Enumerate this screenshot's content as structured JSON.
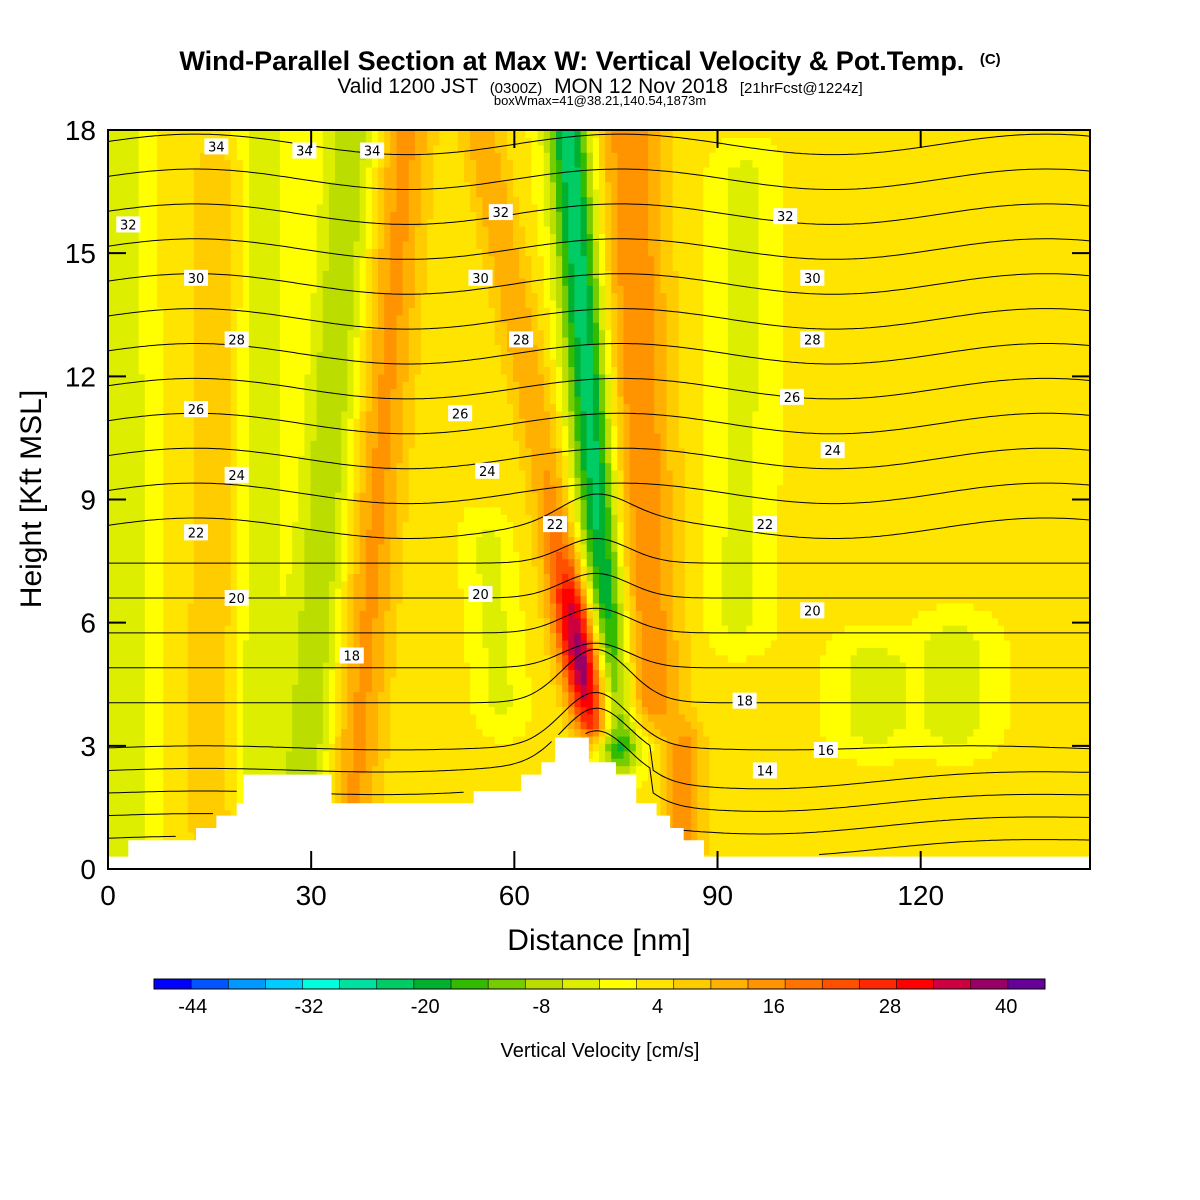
{
  "header": {
    "title": "Wind-Parallel Section at Max W: Vertical Velocity & Pot.Temp.",
    "title_mark": "(C)",
    "sub_valid": "Valid 1200 JST",
    "sub_z": "(0300Z)",
    "sub_date": "MON 12 Nov 2018",
    "sub_fcst": "[21hrFcst@1224z]",
    "sub_box": "boxWmax=41@38.21,140.54,1873m"
  },
  "chart_data": {
    "type": "heatmap",
    "title": "Wind-Parallel Section at Max W: Vertical Velocity & Pot.Temp.",
    "xlabel": "Distance [nm]",
    "ylabel": "Height [Kft MSL]",
    "xlim": [
      0,
      145
    ],
    "ylim": [
      0,
      18
    ],
    "x_ticks": [
      0,
      30,
      60,
      90,
      120
    ],
    "y_ticks": [
      0,
      3,
      6,
      9,
      12,
      15,
      18
    ],
    "colorbar": {
      "label": "Vertical Velocity [cm/s]",
      "tick_labels": [
        "-44",
        "-32",
        "-20",
        "-8",
        "4",
        "16",
        "28",
        "40"
      ],
      "tick_values": [
        -44,
        -32,
        -20,
        -8,
        4,
        16,
        28,
        40
      ],
      "bounds": [
        -48,
        44
      ],
      "colors": [
        "#0000ff",
        "#0055ff",
        "#0099ff",
        "#00ccff",
        "#00ffdd",
        "#00e0a0",
        "#00cc66",
        "#00b030",
        "#33bb00",
        "#77cc00",
        "#bbdd00",
        "#ddee00",
        "#ffff00",
        "#ffe400",
        "#ffcc00",
        "#ffb000",
        "#ff9400",
        "#ff7400",
        "#ff5000",
        "#ff2800",
        "#ff0000",
        "#cc0040",
        "#990066",
        "#660099"
      ]
    },
    "velocity_features": [
      {
        "kind": "updraft",
        "x0": 72,
        "x1": 55,
        "y0": 3.5,
        "y1": 18,
        "w": 3.2,
        "peak": 41
      },
      {
        "kind": "downdraft",
        "x0": 75,
        "x1": 68,
        "y0": 3,
        "y1": 18,
        "w": 3.2,
        "peak": -27
      },
      {
        "kind": "updraft",
        "x0": 80,
        "x1": 77,
        "y0": 4,
        "y1": 18,
        "w": 5,
        "peak": 14
      },
      {
        "kind": "downdraft",
        "x0": 58,
        "x1": 56,
        "y0": 4,
        "y1": 8,
        "w": 3,
        "peak": -6
      },
      {
        "kind": "downdraft",
        "x0": 29,
        "x1": 36,
        "y0": 1.5,
        "y1": 18,
        "w": 4,
        "peak": -12
      },
      {
        "kind": "updraft",
        "x0": 36,
        "x1": 44,
        "y0": 1.5,
        "y1": 18,
        "w": 4,
        "peak": 12
      },
      {
        "kind": "downdraft",
        "x0": 22,
        "x1": 23,
        "y0": 2,
        "y1": 18,
        "w": 3.5,
        "peak": -7
      },
      {
        "kind": "updraft",
        "x0": 15,
        "x1": 16,
        "y0": 1,
        "y1": 17,
        "w": 3.5,
        "peak": 7
      },
      {
        "kind": "downdraft",
        "x0": 3,
        "x1": 2,
        "y0": 0,
        "y1": 18,
        "w": 3.5,
        "peak": -8
      },
      {
        "kind": "downdraft",
        "x0": 93,
        "x1": 94,
        "y0": 6,
        "y1": 17,
        "w": 4,
        "peak": -6
      },
      {
        "kind": "updraft",
        "x0": 85,
        "x1": 85,
        "y0": 0.5,
        "y1": 3,
        "w": 3,
        "peak": 13
      },
      {
        "kind": "downdraft",
        "x0": 113,
        "x1": 113,
        "y0": 3.5,
        "y1": 5,
        "w": 5,
        "peak": -8
      },
      {
        "kind": "downdraft",
        "x0": 125,
        "x1": 125,
        "y0": 3.5,
        "y1": 5.5,
        "w": 5,
        "peak": -8
      }
    ],
    "terrain": {
      "x": [
        0,
        3,
        10,
        13,
        16,
        19,
        20,
        30,
        33,
        49,
        54,
        58,
        61,
        62,
        64,
        66,
        70,
        71,
        73,
        75,
        78,
        81,
        83,
        85,
        88,
        145
      ],
      "y": [
        0.3,
        0.7,
        0.7,
        1.0,
        1.3,
        1.6,
        2.3,
        2.3,
        1.6,
        1.6,
        1.9,
        1.9,
        2.3,
        2.3,
        2.6,
        3.2,
        3.2,
        2.6,
        2.6,
        2.3,
        1.6,
        1.3,
        1.0,
        0.7,
        0.3,
        0.3
      ]
    },
    "theta_contours": {
      "levels": [
        13,
        14,
        15,
        16,
        17,
        18,
        19,
        20,
        21,
        22,
        23,
        24,
        25,
        26,
        27,
        28,
        29,
        30,
        31,
        32,
        33,
        34,
        35
      ],
      "labels": [
        {
          "text": "34",
          "x": 16,
          "y": 17.6
        },
        {
          "text": "34",
          "x": 29,
          "y": 17.5
        },
        {
          "text": "34",
          "x": 39,
          "y": 17.5
        },
        {
          "text": "32",
          "x": 3,
          "y": 15.7
        },
        {
          "text": "32",
          "x": 58,
          "y": 16.0
        },
        {
          "text": "32",
          "x": 100,
          "y": 15.9
        },
        {
          "text": "30",
          "x": 13,
          "y": 14.4
        },
        {
          "text": "30",
          "x": 55,
          "y": 14.4
        },
        {
          "text": "30",
          "x": 104,
          "y": 14.4
        },
        {
          "text": "28",
          "x": 19,
          "y": 12.9
        },
        {
          "text": "28",
          "x": 61,
          "y": 12.9
        },
        {
          "text": "28",
          "x": 104,
          "y": 12.9
        },
        {
          "text": "26",
          "x": 13,
          "y": 11.2
        },
        {
          "text": "26",
          "x": 52,
          "y": 11.1
        },
        {
          "text": "26",
          "x": 101,
          "y": 11.5
        },
        {
          "text": "24",
          "x": 19,
          "y": 9.6
        },
        {
          "text": "24",
          "x": 56,
          "y": 9.7
        },
        {
          "text": "24",
          "x": 107,
          "y": 10.2
        },
        {
          "text": "22",
          "x": 13,
          "y": 8.2
        },
        {
          "text": "22",
          "x": 66,
          "y": 8.4
        },
        {
          "text": "22",
          "x": 97,
          "y": 8.4
        },
        {
          "text": "20",
          "x": 19,
          "y": 6.6
        },
        {
          "text": "20",
          "x": 55,
          "y": 6.7
        },
        {
          "text": "20",
          "x": 104,
          "y": 6.3
        },
        {
          "text": "18",
          "x": 36,
          "y": 5.2
        },
        {
          "text": "18",
          "x": 94,
          "y": 4.1
        },
        {
          "text": "16",
          "x": 106,
          "y": 2.9
        },
        {
          "text": "14",
          "x": 97,
          "y": 2.4
        }
      ]
    }
  }
}
